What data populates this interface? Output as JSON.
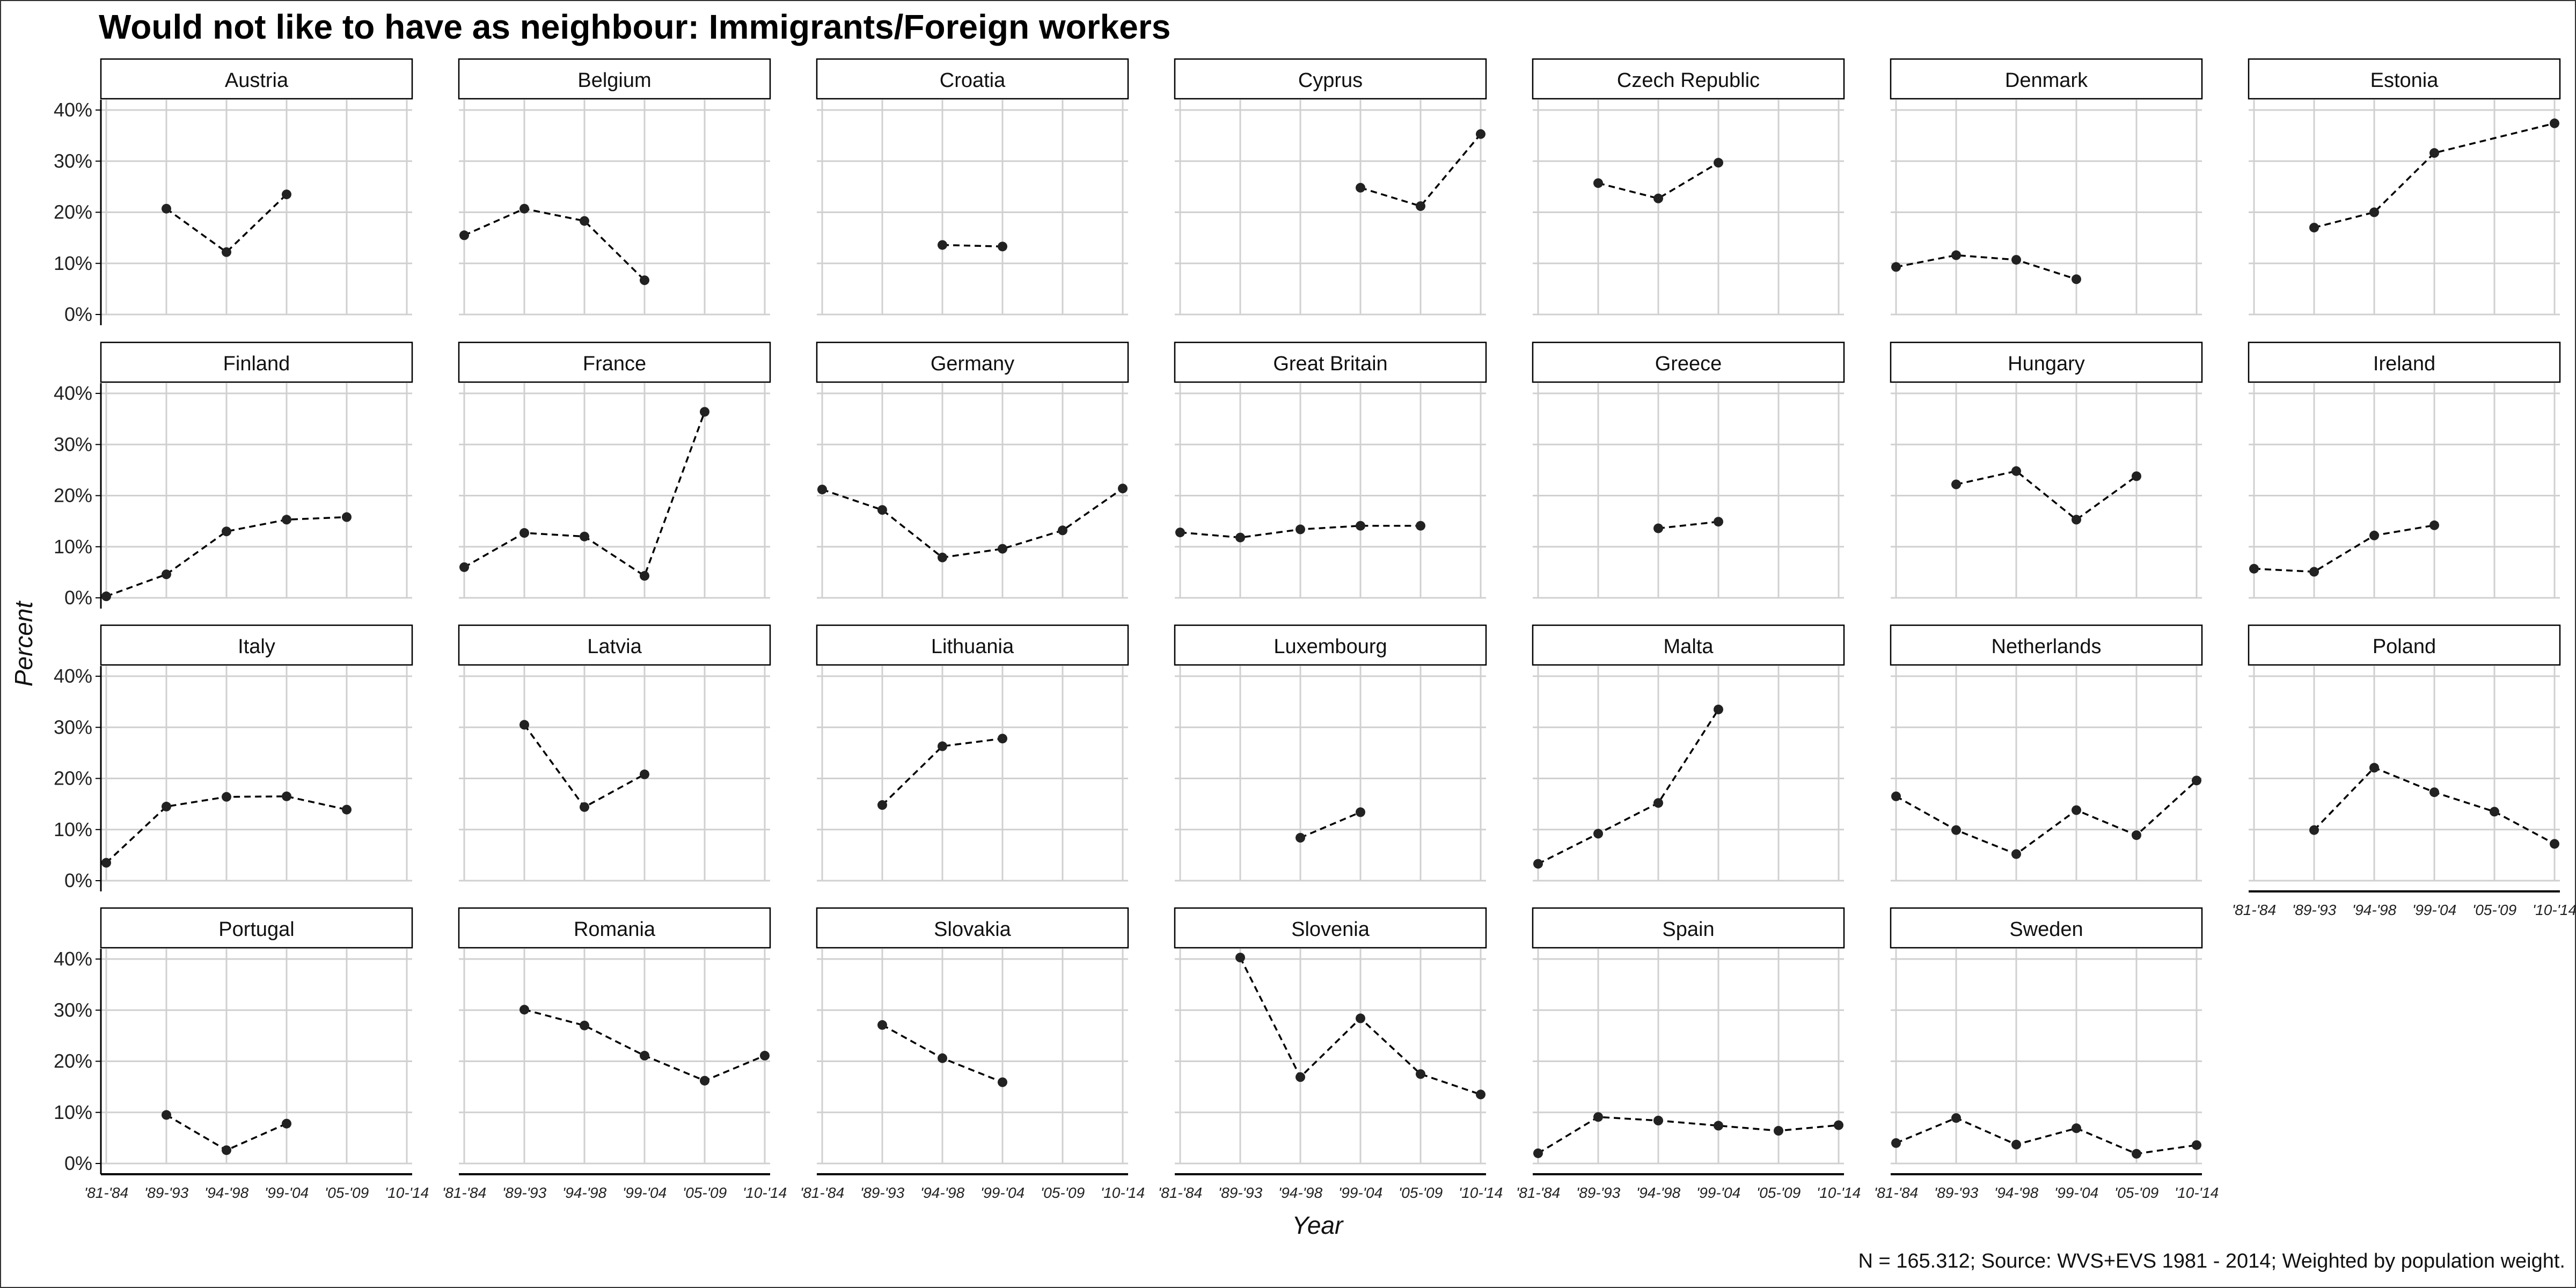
{
  "chart_data": {
    "type": "line",
    "title": "Would not like to have as neighbour: Immigrants/Foreign workers",
    "xlabel": "Year",
    "ylabel": "Percent",
    "caption": "N = 165.312; Source: WVS+EVS 1981 - 2014; Weighted by population weight.",
    "categories": [
      "'81-'84",
      "'89-'93",
      "'94-'98",
      "'99-'04",
      "'05-'09",
      "'10-'14"
    ],
    "y_ticks": [
      "0%",
      "10%",
      "20%",
      "30%",
      "40%"
    ],
    "ylim": [
      0,
      42
    ],
    "grid": true,
    "line_style": "dashed",
    "colors": {
      "line": "#000000",
      "point": "#222222",
      "grid": "#d0d0d0",
      "strip_border": "#000000"
    },
    "panels": [
      {
        "name": "Austria",
        "values": [
          null,
          20.7,
          12.2,
          23.5,
          null,
          null
        ]
      },
      {
        "name": "Belgium",
        "values": [
          15.5,
          20.7,
          18.3,
          6.7,
          null,
          null
        ]
      },
      {
        "name": "Croatia",
        "values": [
          null,
          null,
          13.6,
          13.3,
          null,
          null
        ]
      },
      {
        "name": "Cyprus",
        "values": [
          null,
          null,
          null,
          24.8,
          21.2,
          35.3
        ]
      },
      {
        "name": "Czech Republic",
        "values": [
          null,
          25.7,
          22.7,
          29.7,
          null,
          null
        ]
      },
      {
        "name": "Denmark",
        "values": [
          9.3,
          11.6,
          10.7,
          6.9,
          null,
          null
        ]
      },
      {
        "name": "Estonia",
        "values": [
          null,
          17.0,
          20.0,
          31.6,
          null,
          37.4
        ]
      },
      {
        "name": "Finland",
        "values": [
          0.3,
          4.6,
          13.0,
          15.3,
          15.8,
          null
        ]
      },
      {
        "name": "France",
        "values": [
          6.0,
          12.7,
          12.0,
          4.3,
          36.4,
          null
        ]
      },
      {
        "name": "Germany",
        "values": [
          21.2,
          17.2,
          7.9,
          9.6,
          13.2,
          21.4
        ]
      },
      {
        "name": "Great Britain",
        "values": [
          12.8,
          11.8,
          13.4,
          14.1,
          14.1,
          null
        ]
      },
      {
        "name": "Greece",
        "values": [
          null,
          null,
          13.6,
          14.9,
          null,
          null
        ]
      },
      {
        "name": "Hungary",
        "values": [
          null,
          22.2,
          24.8,
          15.3,
          23.8,
          null
        ]
      },
      {
        "name": "Ireland",
        "values": [
          5.7,
          5.1,
          12.2,
          14.2,
          null,
          null
        ]
      },
      {
        "name": "Italy",
        "values": [
          3.5,
          14.5,
          16.4,
          16.5,
          13.9,
          null
        ]
      },
      {
        "name": "Latvia",
        "values": [
          null,
          30.5,
          14.4,
          20.8,
          null,
          null
        ]
      },
      {
        "name": "Lithuania",
        "values": [
          null,
          14.8,
          26.3,
          27.8,
          null,
          null
        ]
      },
      {
        "name": "Luxembourg",
        "values": [
          null,
          null,
          8.4,
          13.4,
          null,
          null
        ]
      },
      {
        "name": "Malta",
        "values": [
          3.3,
          9.2,
          15.2,
          33.5,
          null,
          null
        ]
      },
      {
        "name": "Netherlands",
        "values": [
          16.5,
          9.9,
          5.2,
          13.8,
          8.9,
          19.6
        ]
      },
      {
        "name": "Poland",
        "values": [
          null,
          9.9,
          22.1,
          17.3,
          13.5,
          7.2
        ]
      },
      {
        "name": "Portugal",
        "values": [
          null,
          9.5,
          2.6,
          7.8,
          null,
          null
        ]
      },
      {
        "name": "Romania",
        "values": [
          null,
          30.1,
          27.0,
          21.1,
          16.2,
          21.1
        ]
      },
      {
        "name": "Slovakia",
        "values": [
          null,
          27.1,
          20.6,
          15.9,
          null,
          null
        ]
      },
      {
        "name": "Slovenia",
        "values": [
          null,
          40.3,
          16.9,
          28.4,
          17.5,
          13.5
        ]
      },
      {
        "name": "Spain",
        "values": [
          2.0,
          9.1,
          8.4,
          7.4,
          6.4,
          7.5
        ]
      },
      {
        "name": "Sweden",
        "values": [
          4.0,
          8.9,
          3.7,
          6.9,
          1.9,
          3.6
        ]
      }
    ]
  }
}
